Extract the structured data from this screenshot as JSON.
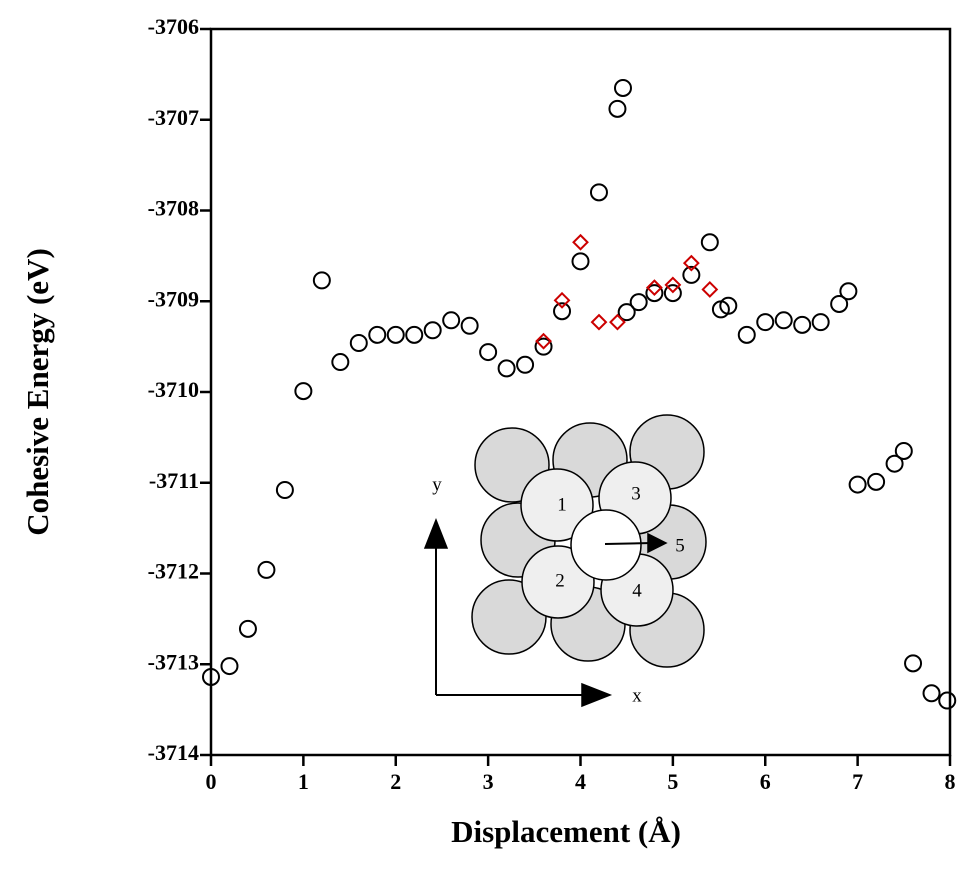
{
  "chart_data": {
    "type": "scatter",
    "xlabel": "Displacement (Å)",
    "ylabel": "Cohesive Energy (eV)",
    "xlim": [
      0,
      8
    ],
    "xticks": [
      0,
      1,
      2,
      3,
      4,
      5,
      6,
      7,
      8
    ],
    "ylim": [
      -3714,
      -3706
    ],
    "yticks": [
      -3714,
      -3713,
      -3712,
      -3711,
      -3710,
      -3709,
      -3708,
      -3707,
      -3706
    ],
    "series": [
      {
        "marker": "circle",
        "color": "#000000",
        "x": [
          0,
          0.2,
          0.4,
          0.6,
          0.8,
          1.0,
          1.2,
          1.4,
          1.6,
          1.8,
          2.0,
          2.2,
          2.4,
          2.6,
          2.8,
          3.0,
          3.2,
          3.4,
          3.6,
          3.8,
          4.0,
          4.2,
          4.4,
          4.46,
          4.5,
          4.63,
          4.8,
          5.0,
          5.2,
          5.4,
          5.52,
          5.6,
          5.8,
          6.0,
          6.2,
          6.4,
          6.6,
          6.8,
          6.9,
          7.0,
          7.2,
          7.4,
          7.5,
          7.6,
          7.8,
          7.97
        ],
        "values": [
          -3713.14,
          -3713.02,
          -3712.61,
          -3711.96,
          -3711.08,
          -3709.99,
          -3708.77,
          -3709.67,
          -3709.46,
          -3709.37,
          -3709.37,
          -3709.37,
          -3709.32,
          -3709.21,
          -3709.27,
          -3709.56,
          -3709.74,
          -3709.7,
          -3709.5,
          -3709.11,
          -3708.56,
          -3707.8,
          -3706.88,
          -3706.65,
          -3709.12,
          -3709.01,
          -3708.91,
          -3708.91,
          -3708.71,
          -3708.35,
          -3709.09,
          -3709.05,
          -3709.37,
          -3709.23,
          -3709.21,
          -3709.26,
          -3709.23,
          -3709.03,
          -3708.89,
          -3711.02,
          -3710.99,
          -3710.79,
          -3710.65,
          -3712.99,
          -3713.32,
          -3713.4
        ]
      },
      {
        "marker": "diamond",
        "color": "#cc0000",
        "x": [
          3.6,
          3.8,
          4.0,
          4.2,
          4.4,
          4.8,
          5.0,
          5.2,
          5.4
        ],
        "values": [
          -3709.44,
          -3708.99,
          -3708.35,
          -3709.23,
          -3709.23,
          -3708.85,
          -3708.82,
          -3708.58,
          -3708.87
        ]
      }
    ],
    "inset": {
      "atom_labels": [
        "1",
        "2",
        "3",
        "4",
        "5"
      ],
      "x_axis": "x",
      "y_axis": "y"
    }
  }
}
